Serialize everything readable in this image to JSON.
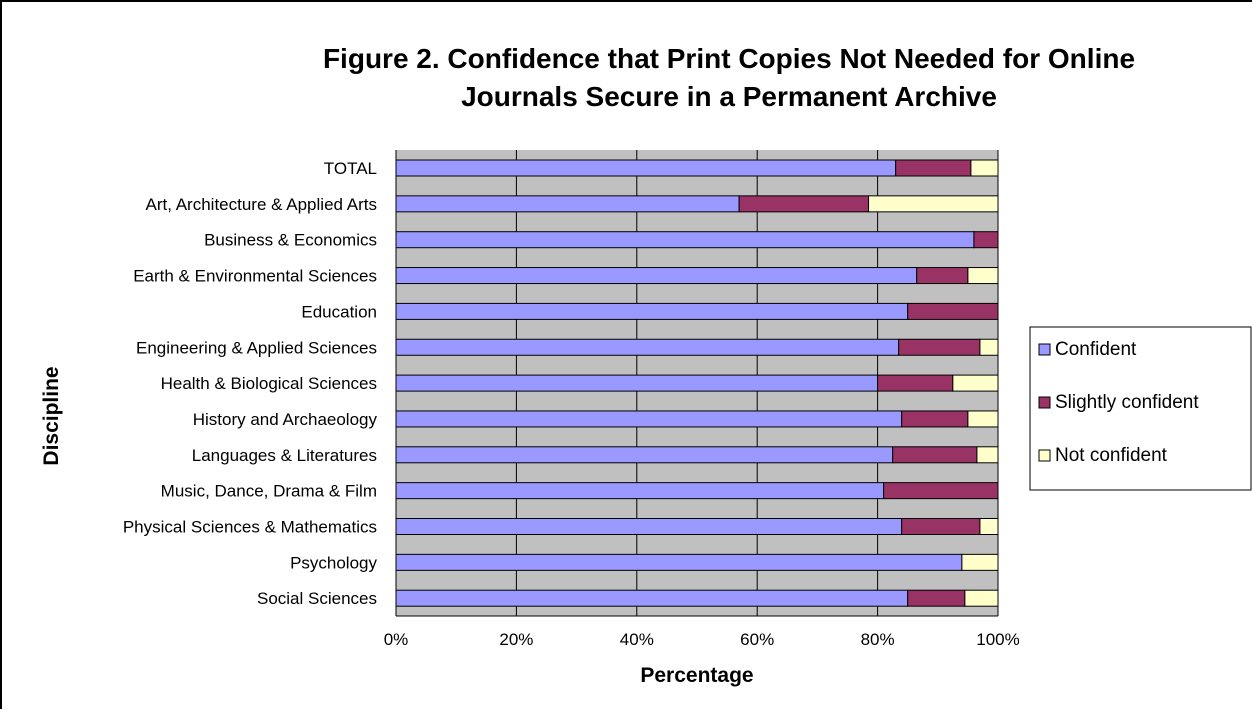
{
  "chart_data": {
    "type": "bar",
    "orientation": "horizontal",
    "stacked": "100%",
    "title_lines": [
      "Figure 2. Confidence that Print Copies Not Needed for Online",
      "Journals Secure in a Permanent Archive"
    ],
    "xlabel": "Percentage",
    "ylabel": "Discipline",
    "x_ticks": [
      "0%",
      "20%",
      "40%",
      "60%",
      "80%",
      "100%"
    ],
    "xlim": [
      0,
      100
    ],
    "grid": true,
    "legend_position": "right",
    "categories": [
      "TOTAL",
      "Art, Architecture & Applied Arts",
      "Business & Economics",
      "Earth & Environmental Sciences",
      "Education",
      "Engineering & Applied Sciences",
      "Health & Biological Sciences",
      "History and Archaeology",
      "Languages & Literatures",
      "Music, Dance, Drama & Film",
      "Physical Sciences & Mathematics",
      "Psychology",
      "Social Sciences"
    ],
    "series": [
      {
        "name": "Confident",
        "color": "#9999ff",
        "values": [
          83,
          57,
          96,
          86.5,
          85,
          83.5,
          80,
          84,
          82.5,
          81,
          84,
          94,
          85
        ]
      },
      {
        "name": "Slightly confident",
        "color": "#993366",
        "values": [
          12.5,
          21.5,
          4,
          8.5,
          15,
          13.5,
          12.5,
          11,
          14,
          19,
          13,
          0,
          9.5
        ]
      },
      {
        "name": "Not confident",
        "color": "#ffffcc",
        "values": [
          4.5,
          21.5,
          0,
          5,
          0,
          3,
          7.5,
          5,
          3.5,
          0,
          3,
          6,
          5.5
        ]
      }
    ],
    "plot_background": "#c0c0c0"
  }
}
